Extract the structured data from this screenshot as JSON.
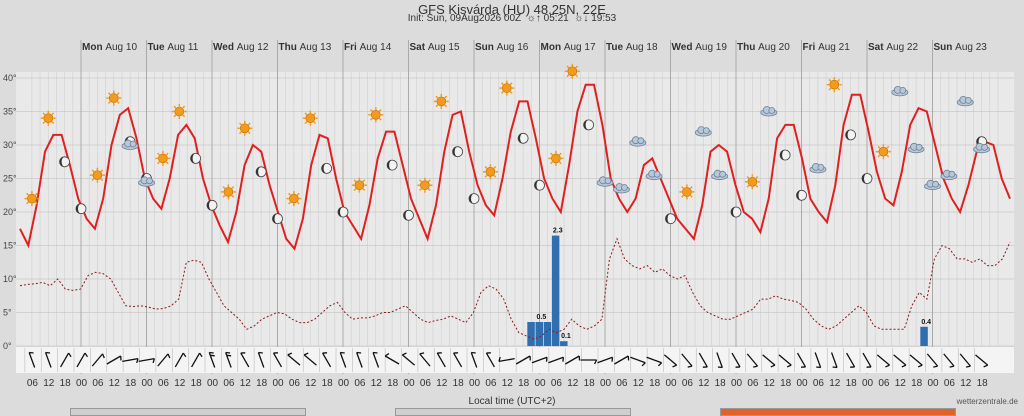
{
  "title": "GFS Kisvárda (HU) 48.25N, 22E",
  "subtitle": {
    "init": "Init: Sun, 09Aug2026 00Z",
    "sunrise": "05:21",
    "sunset": "19:53"
  },
  "footer": {
    "xlabel": "Local time (UTC+2)",
    "credit": "wetterzentrale.de"
  },
  "chart_data": {
    "type": "line",
    "title": "GFS Kisvárda (HU) 48.25N, 22E",
    "xlabel": "Local time (UTC+2)",
    "ylabel": "",
    "ylim": [
      0,
      41
    ],
    "grid": true,
    "days": [
      {
        "name": "Mon",
        "date": "Aug 10"
      },
      {
        "name": "Tue",
        "date": "Aug 11"
      },
      {
        "name": "Wed",
        "date": "Aug 12"
      },
      {
        "name": "Thu",
        "date": "Aug 13"
      },
      {
        "name": "Fri",
        "date": "Aug 14"
      },
      {
        "name": "Sat",
        "date": "Aug 15"
      },
      {
        "name": "Sun",
        "date": "Aug 16"
      },
      {
        "name": "Mon",
        "date": "Aug 17"
      },
      {
        "name": "Tue",
        "date": "Aug 18"
      },
      {
        "name": "Wed",
        "date": "Aug 19"
      },
      {
        "name": "Thu",
        "date": "Aug 20"
      },
      {
        "name": "Fri",
        "date": "Aug 21"
      },
      {
        "name": "Sat",
        "date": "Aug 22"
      },
      {
        "name": "Sun",
        "date": "Aug 23"
      }
    ],
    "y_ticks": [
      "0°",
      "5°",
      "10°",
      "15°",
      "20°",
      "25°",
      "30°",
      "35°",
      "40°"
    ],
    "x_ticks": [
      "06",
      "12",
      "18",
      "00",
      "06",
      "12",
      "18",
      "00",
      "06",
      "12",
      "18",
      "00",
      "06",
      "12",
      "18",
      "00",
      "06",
      "12",
      "18",
      "00",
      "06",
      "12",
      "18",
      "00",
      "06",
      "12",
      "18",
      "00",
      "06",
      "12",
      "18",
      "00",
      "06",
      "12",
      "18",
      "00",
      "06",
      "12",
      "18",
      "00",
      "06",
      "12",
      "18",
      "00",
      "06",
      "12",
      "18",
      "00",
      "06",
      "12",
      "18",
      "00",
      "06",
      "12",
      "18",
      "00",
      "06",
      "12",
      "18"
    ],
    "series": [
      {
        "name": "temperature",
        "color": "#e02020",
        "values": [
          17.5,
          15,
          21,
          29,
          31.5,
          31.5,
          27,
          22,
          19,
          17.5,
          22,
          30,
          34.5,
          35.5,
          31,
          25,
          22,
          20.5,
          25,
          31.5,
          33,
          31,
          25,
          21,
          18,
          15.5,
          20,
          27,
          30,
          29,
          24,
          20,
          16,
          14.5,
          19,
          27,
          31.5,
          31,
          25,
          20,
          18,
          16,
          21,
          28,
          32,
          32,
          27,
          22,
          19,
          16,
          21,
          29,
          34.5,
          35,
          29,
          24,
          21,
          19.5,
          25,
          32,
          36.5,
          36.5,
          31,
          25,
          22,
          20,
          27,
          35,
          39,
          39,
          33,
          25,
          22,
          20,
          22,
          27,
          28,
          25,
          22,
          19,
          17.5,
          16,
          21,
          29,
          30,
          29,
          24,
          20,
          19,
          17,
          22,
          31,
          33,
          33,
          28,
          22,
          20,
          18.5,
          24,
          33,
          37.5,
          37.5,
          32,
          26,
          22,
          21,
          26,
          33,
          35.5,
          35,
          30,
          25,
          22,
          20,
          24,
          29,
          30.5,
          30,
          25,
          22
        ]
      },
      {
        "name": "dewpoint",
        "color": "#8b1a1a",
        "values": [
          9,
          9.2,
          9.3,
          9.5,
          9,
          10,
          8.5,
          8.3,
          8.5,
          10.5,
          11,
          10.8,
          10,
          8,
          6,
          5.9,
          6,
          5.8,
          5.5,
          5.6,
          6,
          7,
          12.5,
          12.8,
          12.5,
          10,
          8,
          6,
          5,
          4,
          2.5,
          3,
          4,
          4.5,
          5,
          4.8,
          4,
          3.5,
          3.5,
          4,
          5,
          6,
          6.5,
          5,
          4,
          4.2,
          4.2,
          4.5,
          5,
          5,
          5.5,
          6,
          5,
          4,
          3.5,
          3.8,
          4,
          4.5,
          4,
          3.5,
          5,
          8,
          9,
          8.5,
          7,
          4,
          2,
          1.5,
          1,
          1.5,
          2.5,
          2,
          2.5,
          4,
          3,
          2.5,
          3,
          4,
          13,
          16,
          13,
          12,
          11.5,
          12,
          11,
          11.5,
          10.5,
          10,
          10.5,
          8,
          6,
          5,
          4.5,
          4,
          4,
          4.5,
          5,
          5.5,
          7,
          7,
          7.5,
          7,
          6.8,
          6.5,
          5.5,
          4,
          3,
          2.5,
          3,
          4,
          5,
          6,
          5,
          3,
          2.5,
          2.5,
          2.5,
          2.5,
          6,
          8,
          7,
          13,
          15,
          14.5,
          13,
          13,
          12.5,
          13,
          12,
          12,
          13,
          15.5
        ]
      }
    ],
    "precipitation": [
      {
        "day_index": 7,
        "hour": 21,
        "value": 0.5
      },
      {
        "day_index": 8,
        "hour": 0,
        "value": 0.5
      },
      {
        "day_index": 8,
        "hour": 3,
        "value": 0.5
      },
      {
        "day_index": 8,
        "hour": 6,
        "value": 2.3
      },
      {
        "day_index": 8,
        "hour": 9,
        "value": 0.1
      },
      {
        "day_index": 13,
        "hour": 21,
        "value": 0.4
      }
    ],
    "precip_labels": [
      {
        "day_index": 8,
        "hour": 0,
        "text": "0.5"
      },
      {
        "day_index": 8,
        "hour": 6,
        "text": "2.3"
      },
      {
        "day_index": 8,
        "hour": 9,
        "text": "0.1"
      },
      {
        "day_index": 13,
        "hour": 21,
        "text": "0.4"
      }
    ],
    "wind_directions_deg": [
      340,
      340,
      30,
      30,
      40,
      60,
      80,
      80,
      40,
      30,
      30,
      340,
      340,
      330,
      340,
      330,
      310,
      310,
      330,
      340,
      340,
      340,
      300,
      310,
      320,
      330,
      330,
      340,
      330,
      260,
      60,
      70,
      70,
      60,
      90,
      70,
      60,
      110,
      110,
      130,
      140,
      150,
      160,
      150,
      140,
      130,
      130,
      150,
      160,
      160,
      150,
      150,
      130,
      130,
      130,
      140,
      140,
      140,
      130
    ],
    "wind_speed": [
      1,
      1,
      1,
      1,
      1,
      1,
      1,
      1,
      1,
      1,
      1,
      2,
      2,
      1,
      1,
      1,
      1,
      1,
      1,
      1,
      1,
      1,
      1,
      1,
      1,
      1,
      1,
      1,
      1,
      1,
      1,
      1,
      1,
      1,
      1,
      1,
      1,
      1,
      1,
      1,
      1,
      1,
      1,
      1,
      1,
      1,
      1,
      1,
      1,
      1,
      1,
      1,
      1,
      1,
      1,
      1,
      1,
      1,
      1
    ],
    "icons": [
      {
        "day_index": 0,
        "hour": 6,
        "icon": "sun-icon",
        "value": 22
      },
      {
        "day_index": 0,
        "hour": 12,
        "icon": "sun-icon",
        "value": 34
      },
      {
        "day_index": 0,
        "hour": 18,
        "icon": "moon-icon",
        "value": 27.5
      },
      {
        "day_index": 1,
        "hour": 0,
        "icon": "moon-icon",
        "value": 20.5
      },
      {
        "day_index": 1,
        "hour": 6,
        "icon": "sun-icon",
        "value": 25.5
      },
      {
        "day_index": 1,
        "hour": 12,
        "icon": "sun-icon",
        "value": 37
      },
      {
        "day_index": 1,
        "hour": 18,
        "icon": "moon-icon",
        "value": 30.5
      },
      {
        "day_index": 1,
        "hour": 18,
        "icon": "cloud-icon",
        "value": 30
      },
      {
        "day_index": 2,
        "hour": 0,
        "icon": "moon-icon",
        "value": 25
      },
      {
        "day_index": 2,
        "hour": 0,
        "icon": "cloud-icon",
        "value": 24.5
      },
      {
        "day_index": 2,
        "hour": 6,
        "icon": "sun-icon",
        "value": 28
      },
      {
        "day_index": 2,
        "hour": 12,
        "icon": "sun-icon",
        "value": 35
      },
      {
        "day_index": 2,
        "hour": 18,
        "icon": "moon-icon",
        "value": 28
      },
      {
        "day_index": 3,
        "hour": 0,
        "icon": "moon-icon",
        "value": 21
      },
      {
        "day_index": 3,
        "hour": 6,
        "icon": "sun-icon",
        "value": 23
      },
      {
        "day_index": 3,
        "hour": 12,
        "icon": "sun-icon",
        "value": 32.5
      },
      {
        "day_index": 3,
        "hour": 18,
        "icon": "moon-icon",
        "value": 26
      },
      {
        "day_index": 4,
        "hour": 0,
        "icon": "moon-icon",
        "value": 19
      },
      {
        "day_index": 4,
        "hour": 6,
        "icon": "sun-icon",
        "value": 22
      },
      {
        "day_index": 4,
        "hour": 12,
        "icon": "sun-icon",
        "value": 34
      },
      {
        "day_index": 4,
        "hour": 18,
        "icon": "moon-icon",
        "value": 26.5
      },
      {
        "day_index": 5,
        "hour": 0,
        "icon": "moon-icon",
        "value": 20
      },
      {
        "day_index": 5,
        "hour": 6,
        "icon": "sun-icon",
        "value": 24
      },
      {
        "day_index": 5,
        "hour": 12,
        "icon": "sun-icon",
        "value": 34.5
      },
      {
        "day_index": 5,
        "hour": 18,
        "icon": "moon-icon",
        "value": 27
      },
      {
        "day_index": 6,
        "hour": 0,
        "icon": "moon-icon",
        "value": 19.5
      },
      {
        "day_index": 6,
        "hour": 6,
        "icon": "sun-icon",
        "value": 24
      },
      {
        "day_index": 6,
        "hour": 12,
        "icon": "sun-icon",
        "value": 36.5
      },
      {
        "day_index": 6,
        "hour": 18,
        "icon": "moon-icon",
        "value": 29
      },
      {
        "day_index": 7,
        "hour": 0,
        "icon": "moon-icon",
        "value": 22
      },
      {
        "day_index": 7,
        "hour": 6,
        "icon": "sun-icon",
        "value": 26
      },
      {
        "day_index": 7,
        "hour": 12,
        "icon": "sun-icon",
        "value": 38.5
      },
      {
        "day_index": 7,
        "hour": 18,
        "icon": "moon-icon",
        "value": 31
      },
      {
        "day_index": 8,
        "hour": 0,
        "icon": "moon-icon",
        "value": 24
      },
      {
        "day_index": 8,
        "hour": 6,
        "icon": "sun-icon",
        "value": 28
      },
      {
        "day_index": 8,
        "hour": 12,
        "icon": "sun-icon",
        "value": 41
      },
      {
        "day_index": 8,
        "hour": 18,
        "icon": "moon-icon",
        "value": 33
      },
      {
        "day_index": 9,
        "hour": 0,
        "icon": "cloud-icon",
        "value": 24.5
      },
      {
        "day_index": 9,
        "hour": 6,
        "icon": "cloud-icon",
        "value": 23.5
      },
      {
        "day_index": 9,
        "hour": 12,
        "icon": "cloud-icon",
        "value": 30.5
      },
      {
        "day_index": 9,
        "hour": 18,
        "icon": "cloud-icon",
        "value": 25.5
      },
      {
        "day_index": 10,
        "hour": 0,
        "icon": "moon-icon",
        "value": 19
      },
      {
        "day_index": 10,
        "hour": 6,
        "icon": "sun-icon",
        "value": 23
      },
      {
        "day_index": 10,
        "hour": 12,
        "icon": "cloud-icon",
        "value": 32
      },
      {
        "day_index": 10,
        "hour": 18,
        "icon": "cloud-icon",
        "value": 25.5
      },
      {
        "day_index": 11,
        "hour": 0,
        "icon": "moon-icon",
        "value": 20
      },
      {
        "day_index": 11,
        "hour": 6,
        "icon": "sun-icon",
        "value": 24.5
      },
      {
        "day_index": 11,
        "hour": 12,
        "icon": "cloud-icon",
        "value": 35
      },
      {
        "day_index": 11,
        "hour": 18,
        "icon": "moon-icon",
        "value": 28.5
      },
      {
        "day_index": 12,
        "hour": 0,
        "icon": "moon-icon",
        "value": 22.5
      },
      {
        "day_index": 12,
        "hour": 6,
        "icon": "cloud-icon",
        "value": 26.5
      },
      {
        "day_index": 12,
        "hour": 12,
        "icon": "sun-icon",
        "value": 39
      },
      {
        "day_index": 12,
        "hour": 18,
        "icon": "moon-icon",
        "value": 31.5
      },
      {
        "day_index": 13,
        "hour": 0,
        "icon": "moon-icon",
        "value": 25
      },
      {
        "day_index": 13,
        "hour": 6,
        "icon": "sun-icon",
        "value": 29
      },
      {
        "day_index": 13,
        "hour": 12,
        "icon": "cloud-icon",
        "value": 38
      },
      {
        "day_index": 13,
        "hour": 18,
        "icon": "cloud-icon",
        "value": 29.5
      },
      {
        "day_index": 14,
        "hour": 0,
        "icon": "cloud-icon",
        "value": 24
      },
      {
        "day_index": 14,
        "hour": 6,
        "icon": "cloud-icon",
        "value": 25.5
      },
      {
        "day_index": 14,
        "hour": 12,
        "icon": "cloud-icon",
        "value": 36.5
      },
      {
        "day_index": 14,
        "hour": 18,
        "icon": "moon-icon",
        "value": 30.5
      },
      {
        "day_index": 14,
        "hour": 18,
        "icon": "cloud-icon",
        "value": 29.5
      }
    ],
    "colors": {
      "background": "#dcdcdc",
      "plot_background": "#e9e9e9",
      "precipitation": "#2f6fb0",
      "temperature": "#e02020",
      "dewpoint": "#8b1a1a",
      "sun": "#f29b1d",
      "cloud": "#b8c8d8"
    }
  }
}
